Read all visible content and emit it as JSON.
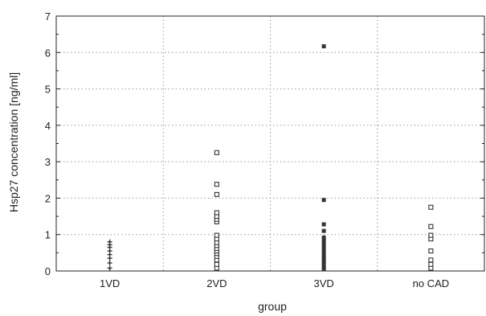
{
  "chart_data": {
    "type": "scatter",
    "title": "",
    "xlabel": "group",
    "ylabel": "Hsp27 concentration [ng/ml]",
    "categories": [
      "1VD",
      "2VD",
      "3VD",
      "no CAD"
    ],
    "ylim": [
      0,
      7
    ],
    "yticks": [
      "0",
      "1",
      "2",
      "3",
      "4",
      "5",
      "6",
      "7"
    ],
    "grid": true,
    "legend": "none",
    "series": [
      {
        "category": "1VD",
        "marker": "plus",
        "values": [
          0.08,
          0.22,
          0.35,
          0.45,
          0.55,
          0.65,
          0.72,
          0.8
        ]
      },
      {
        "category": "2VD",
        "marker": "open-square",
        "values": [
          0.08,
          0.18,
          0.3,
          0.4,
          0.48,
          0.55,
          0.62,
          0.7,
          0.78,
          0.88,
          0.98,
          1.35,
          1.42,
          1.5,
          1.6,
          2.1,
          2.38,
          3.25
        ]
      },
      {
        "category": "3VD",
        "marker": "filled-square",
        "values": [
          0.05,
          0.12,
          0.2,
          0.28,
          0.35,
          0.45,
          0.55,
          0.65,
          0.75,
          0.85,
          0.92,
          1.1,
          1.28,
          1.95,
          6.17
        ]
      },
      {
        "category": "no CAD",
        "marker": "open-square",
        "values": [
          0.08,
          0.18,
          0.3,
          0.55,
          0.88,
          0.98,
          1.22,
          1.75
        ]
      }
    ],
    "colors": {
      "marker": "#333333",
      "grid": "#9a9a9a",
      "axis": "#222222"
    }
  }
}
